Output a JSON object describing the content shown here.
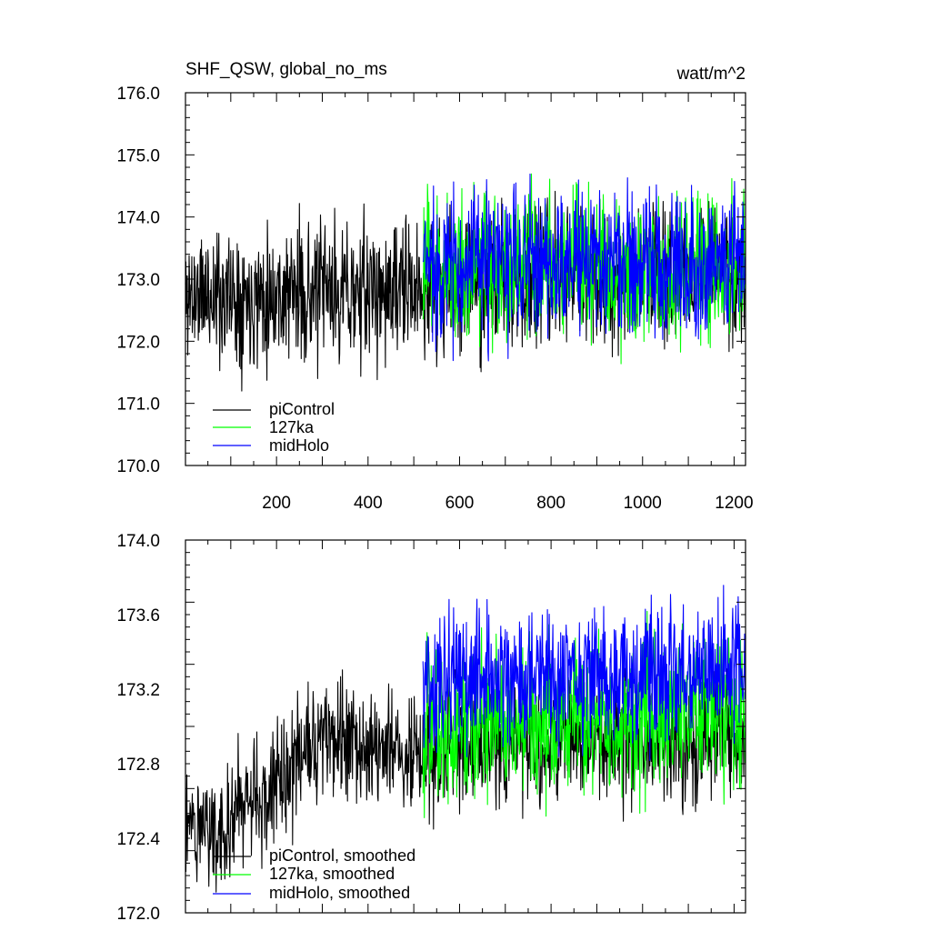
{
  "colors": {
    "piControl": "#000000",
    "127ka": "#00ff00",
    "midHolo": "#0000ff",
    "frame": "#000000"
  },
  "chart_data": [
    {
      "type": "line",
      "title": "SHF_QSW, global_no_ms",
      "units": "watt/m^2",
      "xlabel": "",
      "ylabel": "",
      "xlim": [
        1,
        1225
      ],
      "ylim": [
        170.0,
        176.0
      ],
      "x_ticks": [
        200,
        400,
        600,
        800,
        1000,
        1200
      ],
      "x_tick_labels": [
        "200",
        "400",
        "600",
        "800",
        "1000",
        "1200"
      ],
      "y_ticks": [
        170.0,
        171.0,
        172.0,
        173.0,
        174.0,
        175.0,
        176.0
      ],
      "y_tick_labels": [
        "170.0",
        "171.0",
        "172.0",
        "173.0",
        "174.0",
        "175.0",
        "176.0"
      ],
      "grid": false,
      "legend_position": "bottom-left",
      "series": [
        {
          "name": "piControl",
          "color": "#000000",
          "x_range": [
            1,
            1225
          ],
          "trend": [
            [
              1,
              172.75
            ],
            [
              520,
              172.8
            ],
            [
              700,
              173.0
            ],
            [
              1000,
              173.1
            ],
            [
              1225,
              173.1
            ]
          ],
          "noise_sd": 0.55,
          "seed": 11
        },
        {
          "name": "127ka",
          "color": "#00ff00",
          "x_range": [
            520,
            1225
          ],
          "trend": [
            [
              520,
              173.2
            ],
            [
              1225,
              173.2
            ]
          ],
          "noise_sd": 0.6,
          "seed": 23
        },
        {
          "name": "midHolo",
          "color": "#0000ff",
          "x_range": [
            520,
            1225
          ],
          "trend": [
            [
              520,
              173.25
            ],
            [
              1225,
              173.3
            ]
          ],
          "noise_sd": 0.6,
          "seed": 37
        }
      ]
    },
    {
      "type": "line",
      "title": "",
      "xlabel": "",
      "ylabel": "",
      "xlim": [
        1,
        1225
      ],
      "ylim": [
        172.0,
        174.0
      ],
      "x_ticks": [
        200,
        400,
        600,
        800,
        1000,
        1200
      ],
      "y_ticks": [
        172.0,
        172.4,
        172.8,
        173.2,
        173.6,
        174.0
      ],
      "y_tick_labels": [
        "172.0",
        "172.4",
        "172.8",
        "173.2",
        "173.6",
        "174.0"
      ],
      "grid": false,
      "legend_position": "bottom-left",
      "series": [
        {
          "name": "piControl, smoothed",
          "color": "#000000",
          "x_range": [
            1,
            1222
          ],
          "trend": [
            [
              1,
              172.5
            ],
            [
              60,
              172.45
            ],
            [
              150,
              172.6
            ],
            [
              250,
              172.8
            ],
            [
              300,
              172.95
            ],
            [
              450,
              172.85
            ],
            [
              520,
              172.85
            ],
            [
              700,
              172.9
            ],
            [
              850,
              172.95
            ],
            [
              1000,
              172.9
            ],
            [
              1222,
              172.95
            ]
          ],
          "noise_sd": 0.16,
          "seed": 51
        },
        {
          "name": "127ka, smoothed",
          "color": "#00ff00",
          "x_range": [
            520,
            1225
          ],
          "trend": [
            [
              520,
              173.0
            ],
            [
              1225,
              173.1
            ]
          ],
          "noise_sd": 0.2,
          "seed": 63
        },
        {
          "name": "midHolo, smoothed",
          "color": "#0000ff",
          "x_range": [
            520,
            1225
          ],
          "trend": [
            [
              520,
              173.25
            ],
            [
              1225,
              173.3
            ]
          ],
          "noise_sd": 0.18,
          "seed": 79
        }
      ]
    }
  ]
}
